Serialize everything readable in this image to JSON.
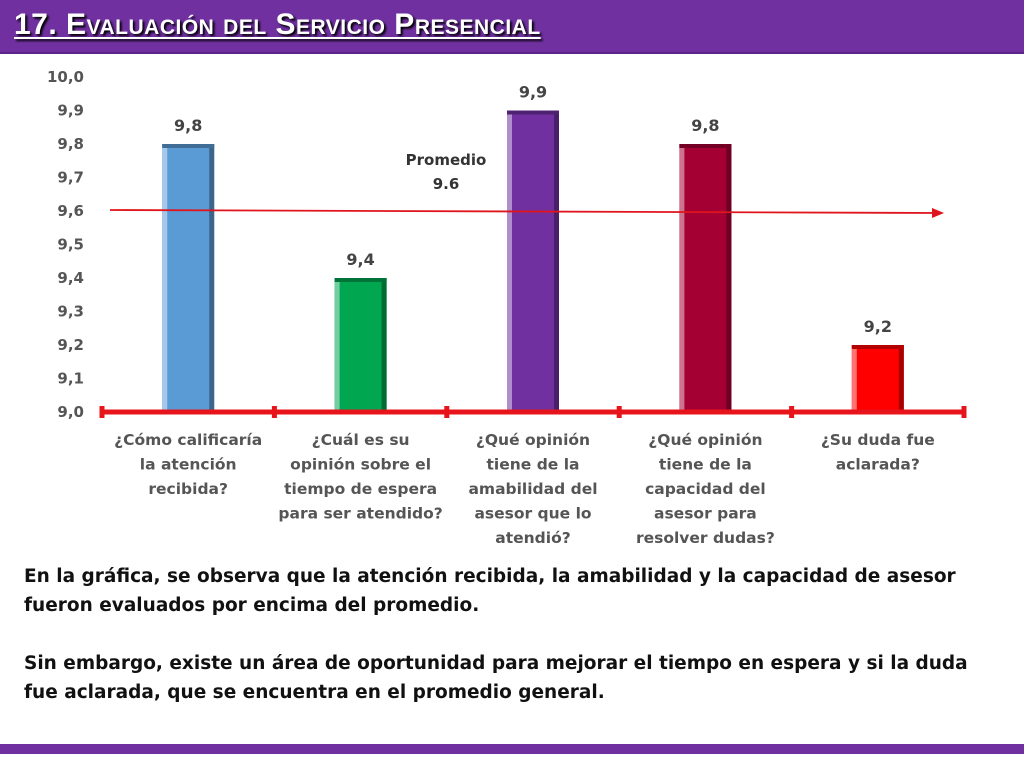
{
  "header": {
    "title": "17. Evaluación del Servicio Presencial"
  },
  "colors": {
    "header_bg": "#7030a0",
    "axis_line": "#e8141c",
    "average_line": "#e0141c"
  },
  "chart_data": {
    "type": "bar",
    "categories": [
      "¿Cómo calificaría la atención recibida?",
      "¿Cuál es su opinión sobre el tiempo de espera para ser atendido?",
      "¿Qué opinión tiene de la amabilidad del asesor que lo atendió?",
      "¿Qué opinión tiene de la capacidad del asesor para resolver dudas?",
      "¿Su duda fue aclarada?"
    ],
    "category_lines": [
      [
        "¿Cómo calificaría",
        "la atención",
        "recibida?"
      ],
      [
        "¿Cuál es su",
        "opinión sobre el",
        "tiempo de espera",
        "para ser atendido?"
      ],
      [
        "¿Qué opinión",
        "tiene de la",
        "amabilidad del",
        "asesor que lo",
        "atendió?"
      ],
      [
        "¿Qué opinión",
        "tiene de la",
        "capacidad del",
        "asesor para",
        "resolver dudas?"
      ],
      [
        "¿Su duda fue",
        "aclarada?"
      ]
    ],
    "values": [
      9.8,
      9.4,
      9.9,
      9.8,
      9.2
    ],
    "value_labels": [
      "9,8",
      "9,4",
      "9,9",
      "9,8",
      "9,2"
    ],
    "bar_colors": [
      "#5b9bd5",
      "#00a650",
      "#7030a0",
      "#a50034",
      "#ff0000"
    ],
    "ylim": [
      9.0,
      10.0
    ],
    "yticks": [
      "9,0",
      "9,1",
      "9,2",
      "9,3",
      "9,4",
      "9,5",
      "9,6",
      "9,7",
      "9,8",
      "9,9",
      "10,0"
    ],
    "average": {
      "value": 9.6,
      "label_line1": "Promedio",
      "label_line2": "9.6"
    },
    "grid": false,
    "legend": "none"
  },
  "body": {
    "paragraph1": "En la gráfica, se observa que la atención recibida, la amabilidad y la capacidad de asesor fueron evaluados por encima del promedio.",
    "paragraph2": "Sin embargo, existe un área de oportunidad para mejorar el tiempo en espera  y si la duda fue aclarada, que se encuentra en el promedio general."
  }
}
